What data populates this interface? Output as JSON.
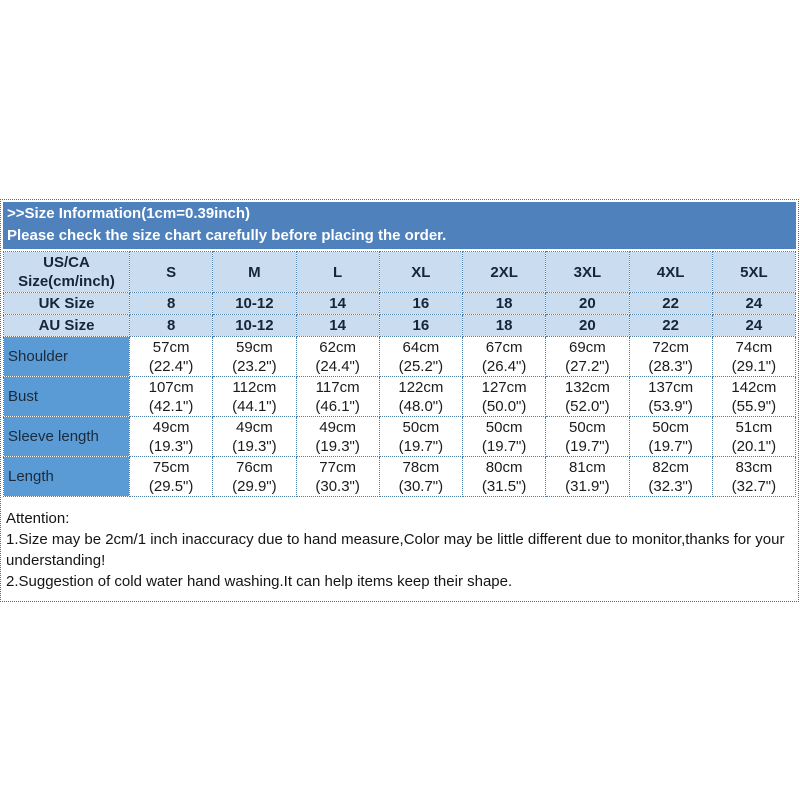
{
  "header": {
    "line1": ">>Size Information(1cm=0.39inch)",
    "line2": "Please check the size chart carefully before placing the order."
  },
  "table": {
    "corner_header": "US/CA Size(cm/inch)",
    "size_headers": [
      "S",
      "M",
      "L",
      "XL",
      "2XL",
      "3XL",
      "4XL",
      "5XL"
    ],
    "uk_row": {
      "label": "UK Size",
      "values": [
        "8",
        "10-12",
        "14",
        "16",
        "18",
        "20",
        "22",
        "24"
      ]
    },
    "au_row": {
      "label": "AU Size",
      "values": [
        "8",
        "10-12",
        "14",
        "16",
        "18",
        "20",
        "22",
        "24"
      ]
    },
    "measure_rows": [
      {
        "label": "Shoulder",
        "cm": [
          "57cm",
          "59cm",
          "62cm",
          "64cm",
          "67cm",
          "69cm",
          "72cm",
          "74cm"
        ],
        "inch": [
          "(22.4\")",
          "(23.2\")",
          "(24.4\")",
          "(25.2\")",
          "(26.4\")",
          "(27.2\")",
          "(28.3\")",
          "(29.1\")"
        ]
      },
      {
        "label": "Bust",
        "cm": [
          "107cm",
          "112cm",
          "117cm",
          "122cm",
          "127cm",
          "132cm",
          "137cm",
          "142cm"
        ],
        "inch": [
          "(42.1\")",
          "(44.1\")",
          "(46.1\")",
          "(48.0\")",
          "(50.0\")",
          "(52.0\")",
          "(53.9\")",
          "(55.9\")"
        ]
      },
      {
        "label": "Sleeve length",
        "cm": [
          "49cm",
          "49cm",
          "49cm",
          "50cm",
          "50cm",
          "50cm",
          "50cm",
          "51cm"
        ],
        "inch": [
          "(19.3\")",
          "(19.3\")",
          "(19.3\")",
          "(19.7\")",
          "(19.7\")",
          "(19.7\")",
          "(19.7\")",
          "(20.1\")"
        ]
      },
      {
        "label": "Length",
        "cm": [
          "75cm",
          "76cm",
          "77cm",
          "78cm",
          "80cm",
          "81cm",
          "82cm",
          "83cm"
        ],
        "inch": [
          "(29.5\")",
          "(29.9\")",
          "(30.3\")",
          "(30.7\")",
          "(31.5\")",
          "(31.9\")",
          "(32.3\")",
          "(32.7\")"
        ]
      }
    ]
  },
  "attention": {
    "title": "Attention:",
    "line1": "1.Size may be 2cm/1 inch inaccuracy due to hand measure,Color may be little different due to monitor,thanks for your understanding!",
    "line2": "2.Suggestion of cold water hand washing.It can help items keep their shape."
  },
  "colors": {
    "header_bar_blue": "#4f81bd",
    "light_blue_cell": "#c9dcf0",
    "label_blue_cell": "#5b9bd5",
    "dotted_border": "#4c7ca8",
    "text_dark": "#1b1b1b",
    "header_text": "#ffffff"
  }
}
